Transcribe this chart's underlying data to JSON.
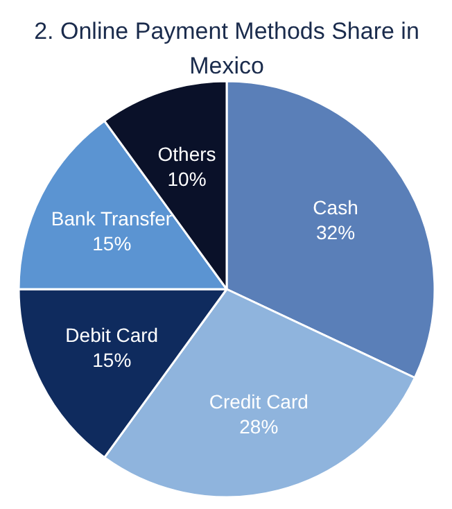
{
  "chart_data": {
    "type": "pie",
    "title": "2. Online Payment Methods Share in Mexico",
    "categories": [
      "Cash",
      "Credit Card",
      "Debit Card",
      "Bank Transfer",
      "Others"
    ],
    "values": [
      32,
      28,
      15,
      15,
      10
    ],
    "value_labels": [
      "32%",
      "28%",
      "15%",
      "15%",
      "10%"
    ],
    "colors": [
      "#5a7fb8",
      "#8fb4dd",
      "#0f2b5e",
      "#5b94d2",
      "#0a1129"
    ]
  }
}
